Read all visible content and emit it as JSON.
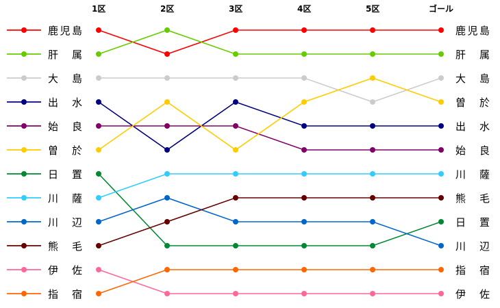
{
  "chart_data": {
    "type": "line",
    "subtype": "bump",
    "categories": [
      "1区",
      "2区",
      "3区",
      "4区",
      "5区",
      "ゴール"
    ],
    "y_axis": "rank (1 at top)",
    "ylim": [
      1,
      12
    ],
    "grid": false,
    "legend": "left",
    "series": [
      {
        "name": "鹿児島",
        "color": "#ff0000",
        "values": [
          1,
          2,
          1,
          1,
          1,
          1
        ]
      },
      {
        "name": "肝属",
        "color": "#66cc00",
        "values": [
          2,
          1,
          2,
          2,
          2,
          2
        ]
      },
      {
        "name": "大島",
        "color": "#cccccc",
        "values": [
          3,
          3,
          3,
          3,
          4,
          3
        ]
      },
      {
        "name": "出水",
        "color": "#000080",
        "values": [
          4,
          6,
          4,
          5,
          5,
          5
        ]
      },
      {
        "name": "始良",
        "color": "#800066",
        "values": [
          5,
          5,
          5,
          6,
          6,
          6
        ]
      },
      {
        "name": "曽於",
        "color": "#ffcc00",
        "values": [
          6,
          4,
          6,
          4,
          3,
          4
        ]
      },
      {
        "name": "日置",
        "color": "#008833",
        "values": [
          7,
          10,
          10,
          10,
          10,
          9
        ]
      },
      {
        "name": "川薩",
        "color": "#33ccff",
        "values": [
          8,
          7,
          7,
          7,
          7,
          7
        ]
      },
      {
        "name": "川辺",
        "color": "#0066cc",
        "values": [
          9,
          8,
          9,
          9,
          9,
          10
        ]
      },
      {
        "name": "熊毛",
        "color": "#660000",
        "values": [
          10,
          9,
          8,
          8,
          8,
          8
        ]
      },
      {
        "name": "伊佐",
        "color": "#ff6699",
        "values": [
          11,
          12,
          12,
          12,
          12,
          12
        ]
      },
      {
        "name": "指宿",
        "color": "#ff6600",
        "values": [
          12,
          11,
          11,
          11,
          11,
          11
        ]
      }
    ]
  }
}
